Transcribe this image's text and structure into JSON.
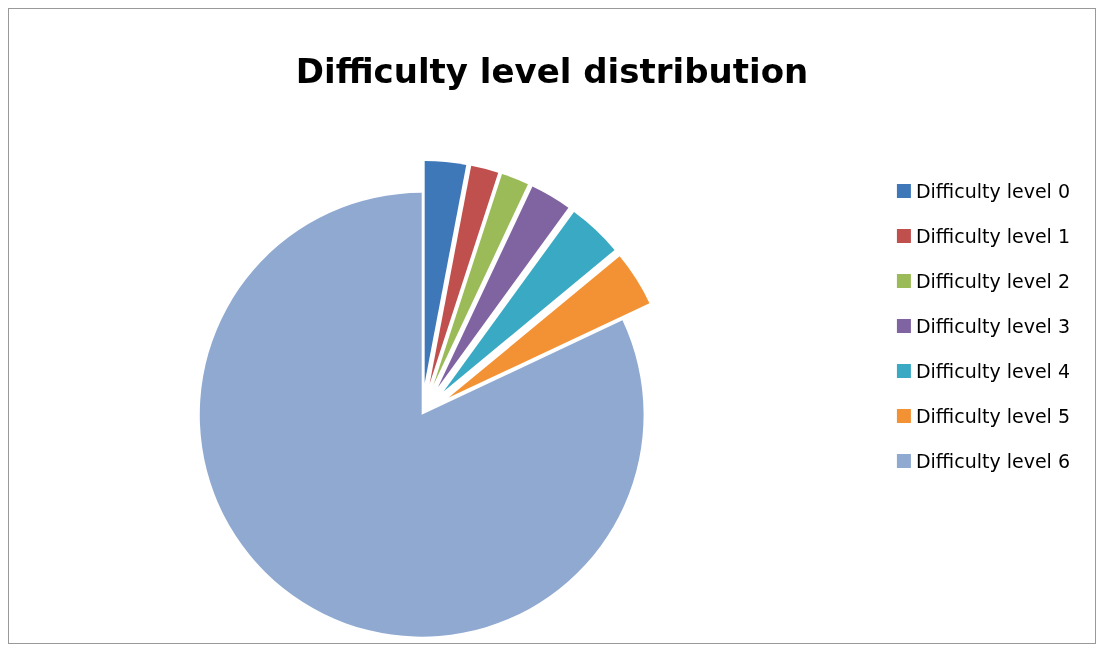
{
  "chart_data": {
    "type": "pie",
    "title": "Difficulty level distribution",
    "categories": [
      "Difficulty level 0",
      "Difficulty level 1",
      "Difficulty level 2",
      "Difficulty level 3",
      "Difficulty level 4",
      "Difficulty level 5",
      "Difficulty level 6"
    ],
    "values": [
      3,
      2,
      2,
      3,
      4,
      4,
      82
    ],
    "colors": [
      "#3f78b9",
      "#c0504d",
      "#9bbb59",
      "#8064a2",
      "#3aa9c4",
      "#f39234",
      "#8fa9d1"
    ],
    "legend": "right"
  }
}
